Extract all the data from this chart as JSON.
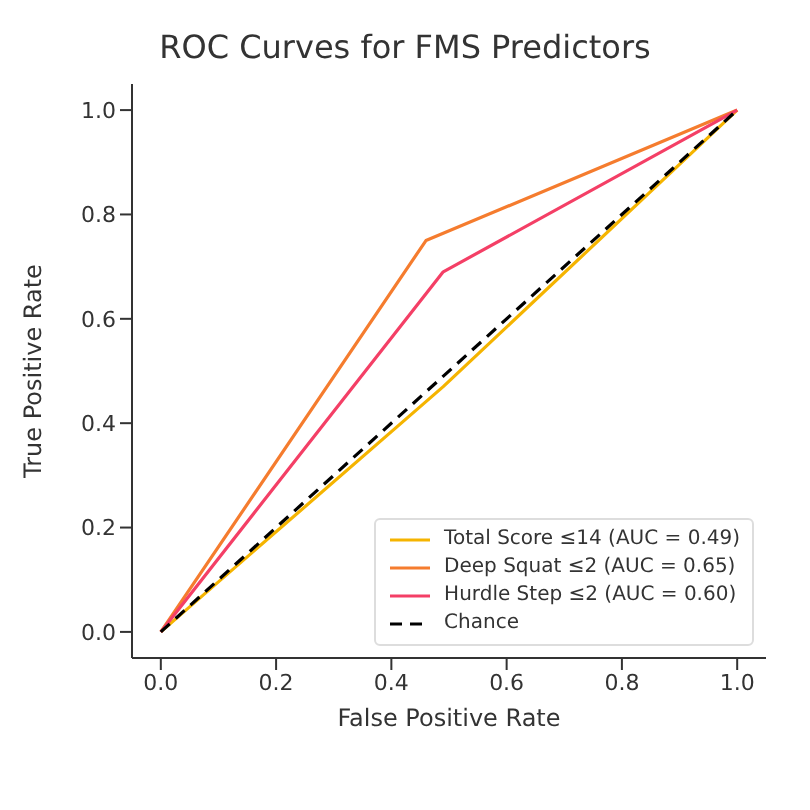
{
  "chart_data": {
    "type": "line",
    "title": "ROC Curves for FMS Predictors",
    "xlabel": "False Positive Rate",
    "ylabel": "True Positive Rate",
    "series": [
      {
        "name": "Total Score ≤14 (AUC = 0.49)",
        "color": "#f5b400",
        "x": [
          0,
          0.49,
          1
        ],
        "values": [
          0,
          0.47,
          1
        ]
      },
      {
        "name": "Deep Squat ≤2 (AUC = 0.65)",
        "color": "#f57c2e",
        "x": [
          0,
          0.46,
          1
        ],
        "values": [
          0,
          0.75,
          1
        ]
      },
      {
        "name": "Hurdle Step ≤2 (AUC = 0.60)",
        "color": "#f43f66",
        "x": [
          0,
          0.49,
          1
        ],
        "values": [
          0,
          0.69,
          1
        ]
      },
      {
        "name": "Chance",
        "color": "#000000",
        "line_style": "dashed",
        "x": [
          0,
          1
        ],
        "values": [
          0,
          1
        ]
      }
    ],
    "xlim": [
      -0.05,
      1.05
    ],
    "ylim": [
      -0.05,
      1.05
    ],
    "xticks": [
      {
        "value": 0,
        "label": "0.0"
      },
      0.2,
      0.4,
      0.6,
      0.8,
      {
        "value": 1,
        "label": "1.0"
      }
    ],
    "yticks": [
      {
        "value": 0,
        "label": "0.0"
      },
      0.2,
      0.4,
      0.6,
      0.8,
      {
        "value": 1,
        "label": "1.0"
      }
    ],
    "grid": false,
    "legend": "bottom right",
    "marker": "none",
    "line_style": "solid"
  }
}
